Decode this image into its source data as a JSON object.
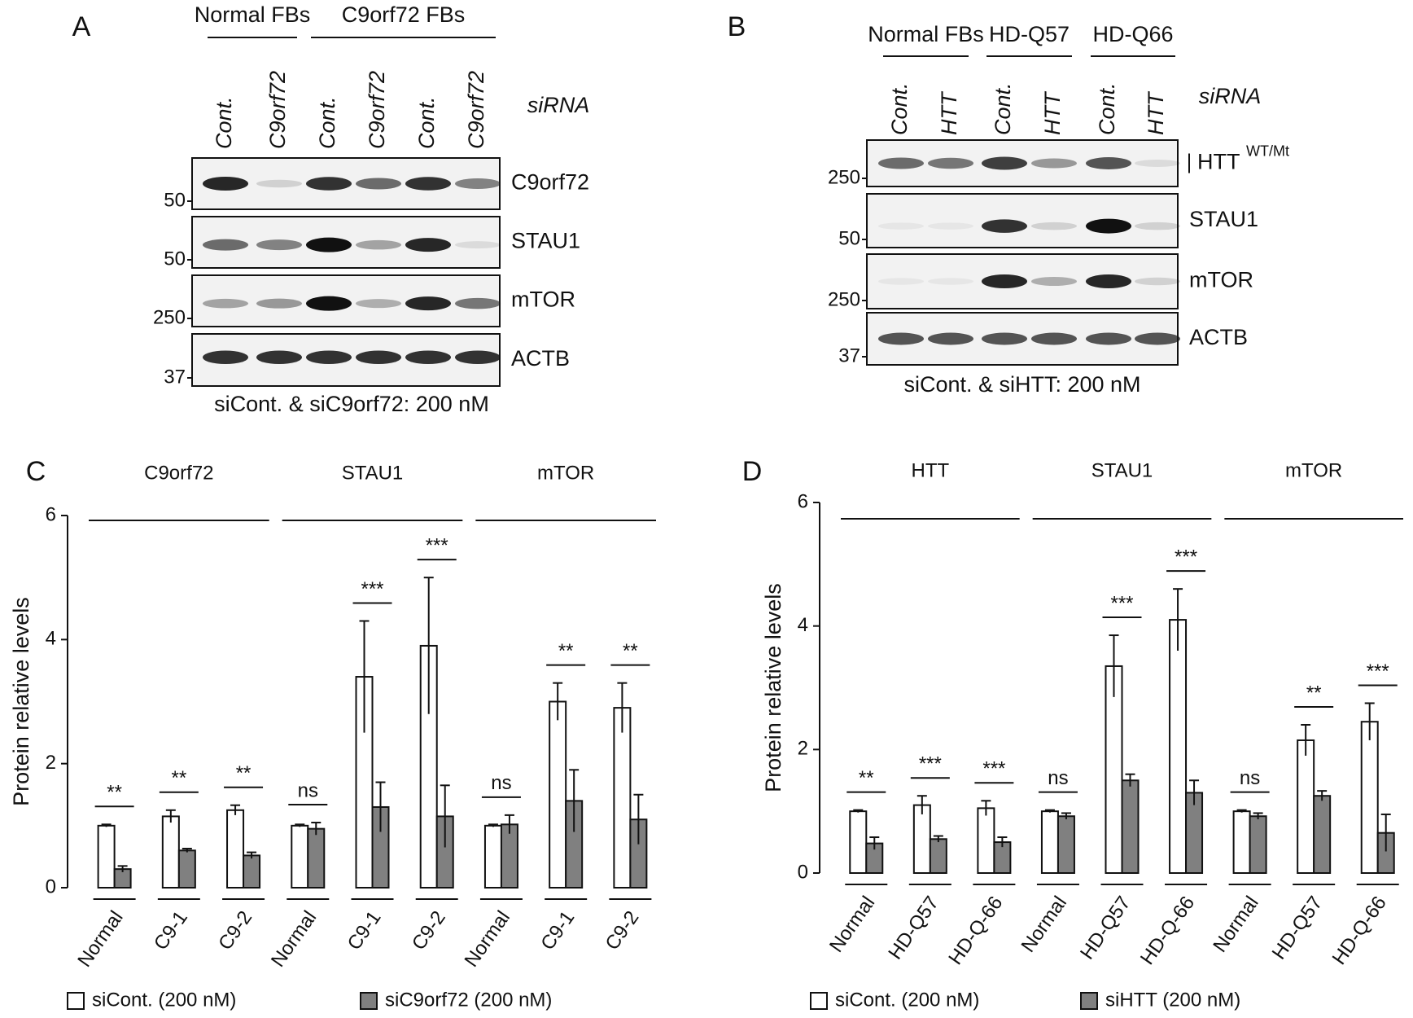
{
  "panels": [
    {
      "label": "A",
      "groups": [
        "Normal FBs",
        "C9orf72 FBs"
      ],
      "lanes": [
        "Cont.",
        "C9orf72",
        "Cont.",
        "C9orf72",
        "Cont.",
        "C9orf72"
      ],
      "lane_title": "siRNA",
      "rows": [
        {
          "name": "C9orf72",
          "marker": "50"
        },
        {
          "name": "STAU1",
          "marker": "50"
        },
        {
          "name": "mTOR",
          "marker": "250"
        },
        {
          "name": "ACTB",
          "marker": "37"
        }
      ],
      "footer": "siCont. & siC9orf72: 200 nM"
    },
    {
      "label": "B",
      "groups": [
        "Normal  FBs",
        "HD-Q57",
        "HD-Q66"
      ],
      "lanes": [
        "Cont.",
        "HTT",
        "Cont.",
        "HTT",
        "Cont.",
        "HTT"
      ],
      "lane_title": "siRNA",
      "rows": [
        {
          "name": "HTT",
          "superscript": "WT/Mt",
          "marker": "250"
        },
        {
          "name": "STAU1",
          "marker": "50"
        },
        {
          "name": "mTOR",
          "marker": "250"
        },
        {
          "name": "ACTB",
          "marker": "37"
        }
      ],
      "footer": "siCont. & siHTT: 200 nM"
    }
  ],
  "chart_data": [
    {
      "type": "bar",
      "label": "C",
      "y_label": "Protein relative levels",
      "groups": [
        "C9orf72",
        "STAU1",
        "mTOR"
      ],
      "categories": [
        "Normal",
        "C9-1",
        "C9-2",
        "Normal",
        "C9-1",
        "C9-2",
        "Normal",
        "C9-1",
        "C9-2"
      ],
      "series": [
        {
          "name": "siCont. (200 nM)",
          "color": "#ffffff",
          "values": [
            1.0,
            1.15,
            1.25,
            1.0,
            3.4,
            3.9,
            1.0,
            3.0,
            2.9
          ],
          "errors": [
            0.02,
            0.1,
            0.08,
            0.02,
            0.9,
            1.1,
            0.02,
            0.3,
            0.4
          ]
        },
        {
          "name": "siC9orf72 (200 nM)",
          "color": "#808080",
          "values": [
            0.3,
            0.6,
            0.52,
            0.95,
            1.3,
            1.15,
            1.02,
            1.4,
            1.1
          ],
          "errors": [
            0.05,
            0.03,
            0.05,
            0.1,
            0.4,
            0.5,
            0.15,
            0.5,
            0.4
          ]
        }
      ],
      "annotations": [
        "**",
        "**",
        "**",
        "ns",
        "***",
        "***",
        "ns",
        "**",
        "**"
      ],
      "ylim": [
        0,
        6
      ],
      "yticks": [
        0,
        2,
        4,
        6
      ]
    },
    {
      "type": "bar",
      "label": "D",
      "y_label": "Protein relative levels",
      "groups": [
        "HTT",
        "STAU1",
        "mTOR"
      ],
      "categories": [
        "Normal",
        "HD-Q57",
        "HD-Q-66",
        "Normal",
        "HD-Q57",
        "HD-Q-66",
        "Normal",
        "HD-Q57",
        "HD-Q-66"
      ],
      "series": [
        {
          "name": "siCont. (200 nM)",
          "color": "#ffffff",
          "values": [
            1.0,
            1.1,
            1.05,
            1.0,
            3.35,
            4.1,
            1.0,
            2.15,
            2.45
          ],
          "errors": [
            0.02,
            0.15,
            0.12,
            0.02,
            0.5,
            0.5,
            0.02,
            0.25,
            0.3
          ]
        },
        {
          "name": "siHTT (200 nM)",
          "color": "#808080",
          "values": [
            0.48,
            0.55,
            0.5,
            0.92,
            1.5,
            1.3,
            0.92,
            1.25,
            0.65
          ],
          "errors": [
            0.1,
            0.05,
            0.08,
            0.05,
            0.1,
            0.2,
            0.05,
            0.08,
            0.3
          ]
        }
      ],
      "annotations": [
        "**",
        "***",
        "***",
        "ns",
        "***",
        "***",
        "ns",
        "**",
        "***"
      ],
      "ylim": [
        0,
        6
      ],
      "yticks": [
        0,
        2,
        4,
        6
      ]
    }
  ]
}
